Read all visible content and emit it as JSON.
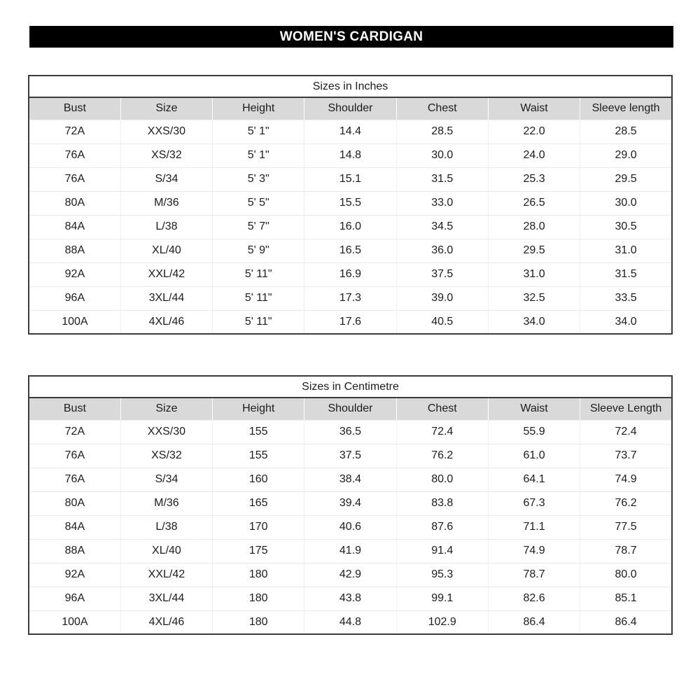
{
  "title": "WOMEN'S CARDIGAN",
  "colors": {
    "title_bar_bg": "#000000",
    "title_text": "#ffffff",
    "header_row_bg": "#d9d9d9",
    "outer_border": "#3b3b3b",
    "grid_line": "#ededed",
    "text": "#1c1c1c"
  },
  "tables": [
    {
      "caption": "Sizes in Inches",
      "columns": [
        "Bust",
        "Size",
        "Height",
        "Shoulder",
        "Chest",
        "Waist",
        "Sleeve length"
      ],
      "rows": [
        [
          "72A",
          "XXS/30",
          "5' 1\"",
          "14.4",
          "28.5",
          "22.0",
          "28.5"
        ],
        [
          "76A",
          "XS/32",
          "5' 1\"",
          "14.8",
          "30.0",
          "24.0",
          "29.0"
        ],
        [
          "76A",
          "S/34",
          "5' 3\"",
          "15.1",
          "31.5",
          "25.3",
          "29.5"
        ],
        [
          "80A",
          "M/36",
          "5' 5\"",
          "15.5",
          "33.0",
          "26.5",
          "30.0"
        ],
        [
          "84A",
          "L/38",
          "5' 7\"",
          "16.0",
          "34.5",
          "28.0",
          "30.5"
        ],
        [
          "88A",
          "XL/40",
          "5' 9\"",
          "16.5",
          "36.0",
          "29.5",
          "31.0"
        ],
        [
          "92A",
          "XXL/42",
          "5' 11\"",
          "16.9",
          "37.5",
          "31.0",
          "31.5"
        ],
        [
          "96A",
          "3XL/44",
          "5' 11\"",
          "17.3",
          "39.0",
          "32.5",
          "33.5"
        ],
        [
          "100A",
          "4XL/46",
          "5' 11\"",
          "17.6",
          "40.5",
          "34.0",
          "34.0"
        ]
      ]
    },
    {
      "caption": "Sizes in Centimetre",
      "columns": [
        "Bust",
        "Size",
        "Height",
        "Shoulder",
        "Chest",
        "Waist",
        "Sleeve Length"
      ],
      "rows": [
        [
          "72A",
          "XXS/30",
          "155",
          "36.5",
          "72.4",
          "55.9",
          "72.4"
        ],
        [
          "76A",
          "XS/32",
          "155",
          "37.5",
          "76.2",
          "61.0",
          "73.7"
        ],
        [
          "76A",
          "S/34",
          "160",
          "38.4",
          "80.0",
          "64.1",
          "74.9"
        ],
        [
          "80A",
          "M/36",
          "165",
          "39.4",
          "83.8",
          "67.3",
          "76.2"
        ],
        [
          "84A",
          "L/38",
          "170",
          "40.6",
          "87.6",
          "71.1",
          "77.5"
        ],
        [
          "88A",
          "XL/40",
          "175",
          "41.9",
          "91.4",
          "74.9",
          "78.7"
        ],
        [
          "92A",
          "XXL/42",
          "180",
          "42.9",
          "95.3",
          "78.7",
          "80.0"
        ],
        [
          "96A",
          "3XL/44",
          "180",
          "43.8",
          "99.1",
          "82.6",
          "85.1"
        ],
        [
          "100A",
          "4XL/46",
          "180",
          "44.8",
          "102.9",
          "86.4",
          "86.4"
        ]
      ]
    }
  ]
}
